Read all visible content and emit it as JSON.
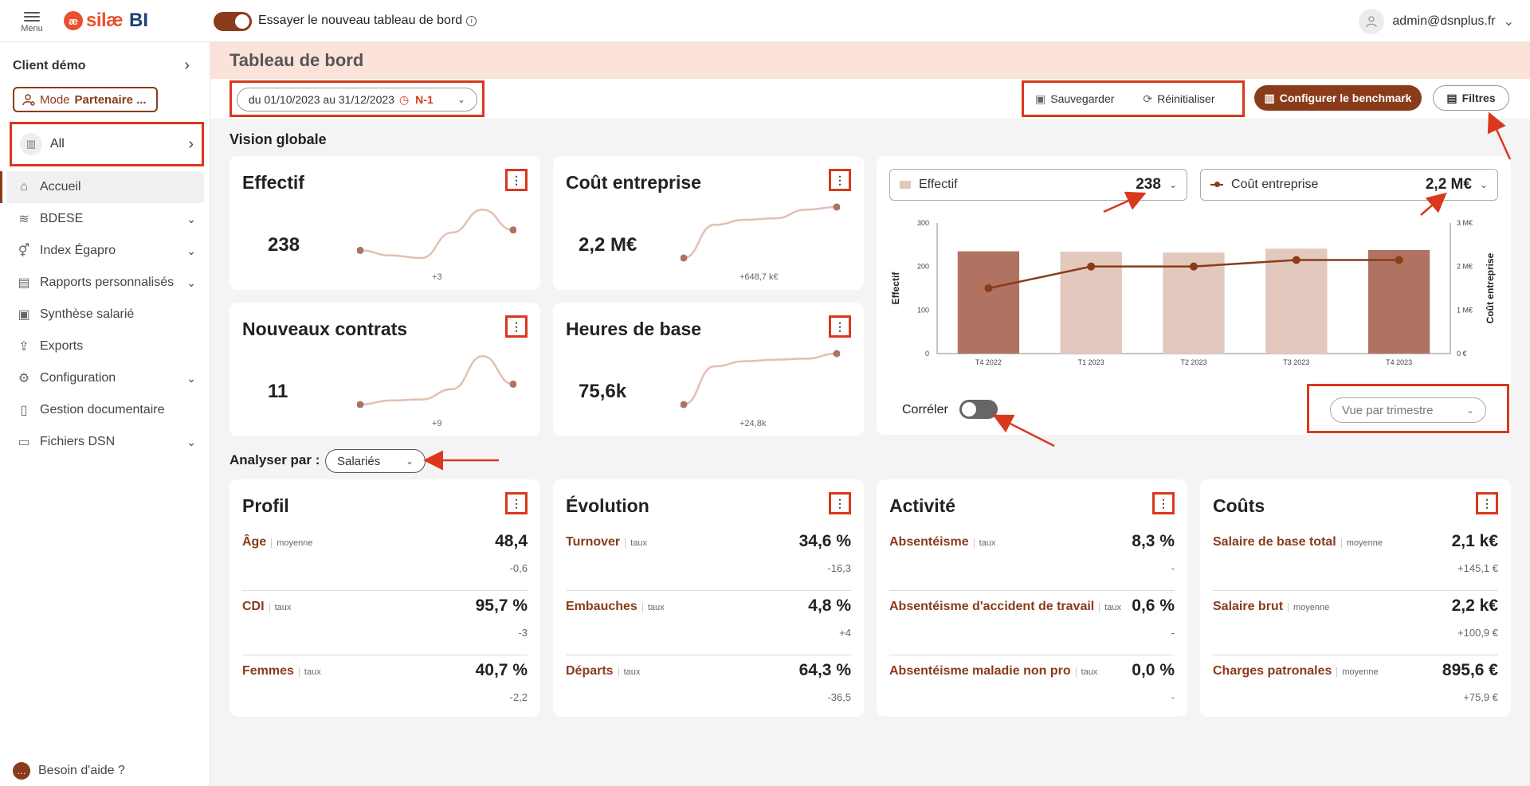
{
  "topbar": {
    "menu_label": "Menu",
    "logo_mark": "æ",
    "logo_name": "silæ",
    "logo_suffix": "BI",
    "new_dashboard_label": "Essayer le nouveau tableau de bord",
    "info_glyph": "i",
    "user_email": "admin@dsnplus.fr",
    "user_chevron": "⌄"
  },
  "sidebar": {
    "client": "Client démo",
    "mode_prefix": "Mode",
    "mode_value": "Partenaire ...",
    "all_label": "All",
    "items": [
      {
        "label": "Accueil",
        "icon": "home-icon",
        "glyph": "⌂",
        "has_chevron": false,
        "active": true
      },
      {
        "label": "BDESE",
        "icon": "database-icon",
        "glyph": "≋",
        "has_chevron": true
      },
      {
        "label": "Index Égapro",
        "icon": "gender-icon",
        "glyph": "⚥",
        "has_chevron": true
      },
      {
        "label": "Rapports personnalisés",
        "icon": "report-icon",
        "glyph": "▤",
        "has_chevron": true
      },
      {
        "label": "Synthèse salarié",
        "icon": "employee-icon",
        "glyph": "▣",
        "has_chevron": false
      },
      {
        "label": "Exports",
        "icon": "export-icon",
        "glyph": "⇪",
        "has_chevron": false
      },
      {
        "label": "Configuration",
        "icon": "settings-icon",
        "glyph": "⚙",
        "has_chevron": true
      },
      {
        "label": "Gestion documentaire",
        "icon": "document-icon",
        "glyph": "▯",
        "has_chevron": false
      },
      {
        "label": "Fichiers DSN",
        "icon": "dsn-file-icon",
        "glyph": "▭",
        "has_chevron": true
      }
    ],
    "help_label": "Besoin d'aide ?"
  },
  "page": {
    "title": "Tableau de bord",
    "date_range": "du 01/10/2023 au 31/12/2023",
    "comparison": "N-1",
    "save_label": "Sauvegarder",
    "reset_label": "Réinitialiser",
    "benchmark_label": "Configurer le benchmark",
    "filters_label": "Filtres",
    "section_global": "Vision globale",
    "analyse_label": "Analyser par :",
    "analyse_value": "Salariés"
  },
  "kpis": [
    {
      "title": "Effectif",
      "value": "238",
      "delta": "+3",
      "spark": [
        0.15,
        0.05,
        0.0,
        0.5,
        0.95,
        0.55
      ]
    },
    {
      "title": "Coût entreprise",
      "value": "2,2 M€",
      "delta": "+648,7 k€",
      "spark": [
        0.0,
        0.65,
        0.75,
        0.78,
        0.95,
        1.0
      ]
    },
    {
      "title": "Nouveaux contrats",
      "value": "11",
      "delta": "+9",
      "spark": [
        0.0,
        0.08,
        0.1,
        0.3,
        0.95,
        0.4
      ]
    },
    {
      "title": "Heures de base",
      "value": "75,6k",
      "delta": "+24,8k",
      "spark": [
        0.0,
        0.75,
        0.85,
        0.88,
        0.9,
        1.0
      ]
    }
  ],
  "chart_panel": {
    "left_select_label": "Effectif",
    "left_select_value": "238",
    "right_select_label": "Coût entreprise",
    "right_select_value": "2,2 M€",
    "correler_label": "Corréler",
    "view_label": "Vue par trimestre",
    "colors": {
      "bar_highlight": "#b07361",
      "bar": "#e2c8bd",
      "line": "#8a3b1a"
    }
  },
  "chart_data": {
    "type": "bar",
    "categories": [
      "T4 2022",
      "T1 2023",
      "T2 2023",
      "T3 2023",
      "T4 2023"
    ],
    "series": [
      {
        "name": "Effectif",
        "type": "bar",
        "axis": "left",
        "values": [
          235,
          234,
          232,
          241,
          238
        ],
        "highlight": [
          true,
          false,
          false,
          false,
          true
        ]
      },
      {
        "name": "Coût entreprise",
        "type": "line",
        "axis": "right",
        "values": [
          1.5,
          2.0,
          2.0,
          2.15,
          2.15
        ]
      }
    ],
    "ylabel": "Effectif",
    "y2label": "Coût entreprise",
    "ylim": [
      0,
      300
    ],
    "y2lim": [
      0,
      3
    ],
    "yticks": [
      "0",
      "100",
      "200",
      "300"
    ],
    "y2ticks": [
      "0 €",
      "1 M€",
      "2 M€",
      "3 M€"
    ],
    "grid": false,
    "legend": "none"
  },
  "sections": [
    {
      "title": "Profil",
      "metrics": [
        {
          "name": "Âge",
          "tag": "moyenne",
          "value": "48,4",
          "delta": "-0,6"
        },
        {
          "name": "CDI",
          "tag": "taux",
          "value": "95,7 %",
          "delta": "-3"
        },
        {
          "name": "Femmes",
          "tag": "taux",
          "value": "40,7 %",
          "delta": "-2,2"
        }
      ]
    },
    {
      "title": "Évolution",
      "metrics": [
        {
          "name": "Turnover",
          "tag": "taux",
          "value": "34,6 %",
          "delta": "-16,3"
        },
        {
          "name": "Embauches",
          "tag": "taux",
          "value": "4,8 %",
          "delta": "+4"
        },
        {
          "name": "Départs",
          "tag": "taux",
          "value": "64,3 %",
          "delta": "-36,5"
        }
      ]
    },
    {
      "title": "Activité",
      "metrics": [
        {
          "name": "Absentéisme",
          "tag": "taux",
          "value": "8,3 %",
          "delta": "-"
        },
        {
          "name": "Absentéisme d'accident de travail",
          "tag": "taux",
          "value": "0,6 %",
          "delta": "-"
        },
        {
          "name": "Absentéisme maladie non pro",
          "tag": "taux",
          "value": "0,0 %",
          "delta": "-"
        }
      ]
    },
    {
      "title": "Coûts",
      "metrics": [
        {
          "name": "Salaire de base total",
          "tag": "moyenne",
          "value": "2,1 k€",
          "delta": "+145,1 €"
        },
        {
          "name": "Salaire brut",
          "tag": "moyenne",
          "value": "2,2 k€",
          "delta": "+100,9 €"
        },
        {
          "name": "Charges patronales",
          "tag": "moyenne",
          "value": "895,6 €",
          "delta": "+75,9 €"
        }
      ]
    }
  ]
}
